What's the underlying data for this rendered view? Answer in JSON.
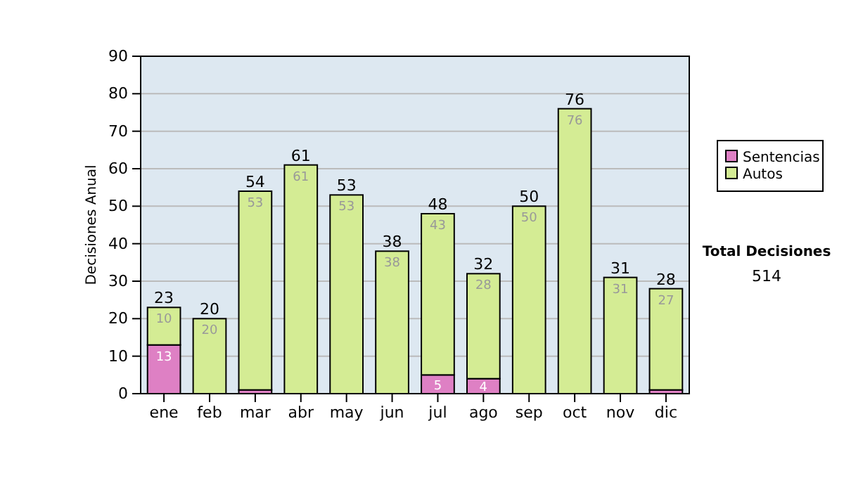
{
  "chart_data": {
    "type": "bar",
    "stacked": true,
    "ylabel": "Decisiones Anual",
    "categories": [
      "ene",
      "feb",
      "mar",
      "abr",
      "may",
      "jun",
      "jul",
      "ago",
      "sep",
      "oct",
      "nov",
      "dic"
    ],
    "series": [
      {
        "name": "Sentencias",
        "color": "#de80c4",
        "values": [
          13,
          0,
          1,
          0,
          0,
          0,
          5,
          4,
          0,
          0,
          0,
          1
        ],
        "value_labels": [
          "13",
          null,
          null,
          null,
          null,
          null,
          "5",
          "4",
          null,
          null,
          null,
          null
        ]
      },
      {
        "name": "Autos",
        "color": "#d4ec94",
        "values": [
          10,
          20,
          53,
          61,
          53,
          38,
          43,
          28,
          50,
          76,
          31,
          27
        ],
        "value_labels": [
          "10",
          "20",
          "53",
          "61",
          "53",
          "38",
          "43",
          "28",
          "50",
          "76",
          "31",
          "27"
        ]
      }
    ],
    "totals": [
      "23",
      "20",
      "54",
      "61",
      "53",
      "38",
      "48",
      "32",
      "50",
      "76",
      "31",
      "28"
    ],
    "ylim": [
      0,
      90
    ],
    "yticks": [
      0,
      10,
      20,
      30,
      40,
      50,
      60,
      70,
      80,
      90
    ],
    "grid": "y",
    "legend": "right",
    "annotations": [
      "Total Decisiones",
      "514"
    ]
  }
}
